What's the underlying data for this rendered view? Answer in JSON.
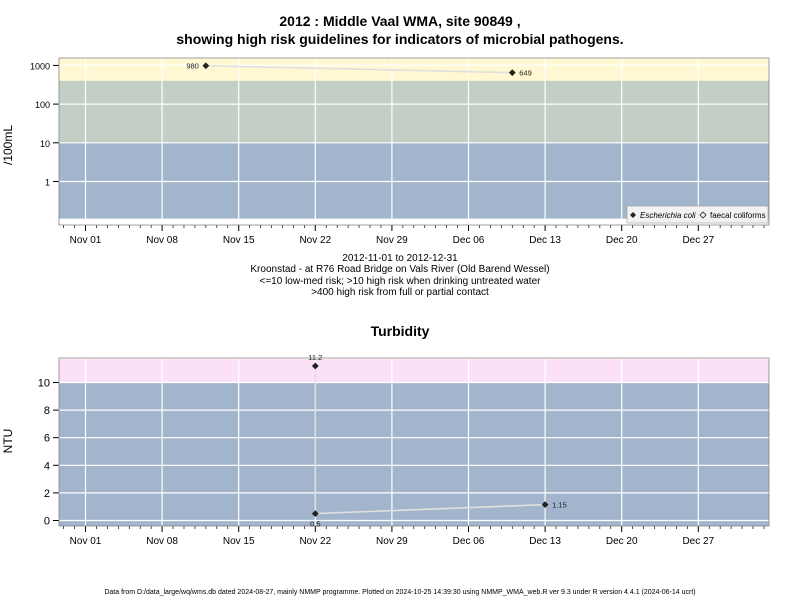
{
  "footer": "Data from D:/data_large/wq/wms.db dated 2024-08-27, mainly NMMP programme. Plotted on 2024-10-25 14:39:30 using NMMP_WMA_web.R ver 9.3 under R version 4.4.1 (2024-06-14 ucrt)",
  "colors": {
    "low_band": "#a2b5cd",
    "mid_band": "#c3cec4",
    "high_band": "#fff8d3",
    "turb_high_band": "#fbe0f8",
    "line": "#e0e0e0",
    "grid": "#ffffff",
    "point": "#222222"
  },
  "chart_data": [
    {
      "type": "scatter",
      "title": "2012 : Middle Vaal WMA, site 90849 ,",
      "subtitle": "showing high risk guidelines for indicators of microbial pathogens.",
      "ylabel": "/100mL",
      "y_scale": "log",
      "y_ticks": [
        {
          "value": 1,
          "label": "1"
        },
        {
          "value": 10,
          "label": "10"
        },
        {
          "value": 100,
          "label": "100"
        },
        {
          "value": 1000,
          "label": "1000"
        }
      ],
      "x_ticks": [
        "2012-11-01",
        "2012-11-08",
        "2012-11-15",
        "2012-11-22",
        "2012-11-29",
        "2012-12-06",
        "2012-12-13",
        "2012-12-20",
        "2012-12-27"
      ],
      "x_tick_labels": [
        "Nov 01",
        "Nov 08",
        "Nov 15",
        "Nov 22",
        "Nov 29",
        "Dec 06",
        "Dec 13",
        "Dec 20",
        "Dec 27"
      ],
      "bands": [
        {
          "from": 400,
          "to": 1600,
          "color": "#fff8d3"
        },
        {
          "from": 10,
          "to": 400,
          "color": "#c3cec4"
        },
        {
          "from": 0.11,
          "to": 10,
          "color": "#a2b5cd"
        }
      ],
      "series": [
        {
          "name": "Escherichia coli",
          "marker": "filled-diamond",
          "points": [
            {
              "date": "2012-11-12",
              "value": 980,
              "label": "980"
            },
            {
              "date": "2012-12-10",
              "value": 649,
              "label": "649"
            }
          ]
        },
        {
          "name": "faecal coliforms",
          "marker": "open-diamond",
          "points": []
        }
      ],
      "legend_position": "bottom-right",
      "grid": true,
      "info_lines": [
        "2012-11-01 to 2012-12-31",
        "Kroonstad - at R76 Road Bridge on Vals River (Old Barend Wessel)",
        "<=10 low-med risk; >10 high risk when drinking untreated water",
        ">400 high risk from full or partial contact"
      ]
    },
    {
      "type": "scatter",
      "title": "Turbidity",
      "ylabel": "NTU",
      "y_scale": "linear",
      "y_ticks": [
        {
          "value": 0,
          "label": "0"
        },
        {
          "value": 2,
          "label": "2"
        },
        {
          "value": 4,
          "label": "4"
        },
        {
          "value": 6,
          "label": "6"
        },
        {
          "value": 8,
          "label": "8"
        },
        {
          "value": 10,
          "label": "10"
        }
      ],
      "x_ticks": [
        "2012-11-01",
        "2012-11-08",
        "2012-11-15",
        "2012-11-22",
        "2012-11-29",
        "2012-12-06",
        "2012-12-13",
        "2012-12-20",
        "2012-12-27"
      ],
      "x_tick_labels": [
        "Nov 01",
        "Nov 08",
        "Nov 15",
        "Nov 22",
        "Nov 29",
        "Dec 06",
        "Dec 13",
        "Dec 20",
        "Dec 27"
      ],
      "bands": [
        {
          "from": 10,
          "to": 11.7,
          "color": "#fbe0f8"
        },
        {
          "from": -0.4,
          "to": 10,
          "color": "#a2b5cd"
        }
      ],
      "series": [
        {
          "name": "Turbidity",
          "marker": "filled-diamond",
          "points": [
            {
              "date": "2012-11-22",
              "value": 11.2,
              "label": "11.2",
              "label_pos": "above"
            },
            {
              "date": "2012-11-22",
              "value": 0.5,
              "label": "0.5",
              "label_pos": "below"
            },
            {
              "date": "2012-12-13",
              "value": 1.15,
              "label": "1.15",
              "label_pos": "right"
            }
          ]
        }
      ],
      "grid": true
    }
  ]
}
